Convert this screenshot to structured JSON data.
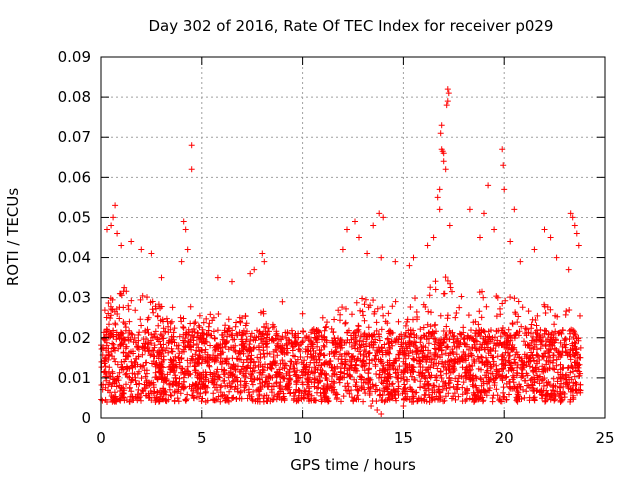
{
  "chart_data": {
    "type": "scatter",
    "title": "Day 302 of 2016, Rate Of TEC Index for receiver p029",
    "xlabel": "GPS time / hours",
    "ylabel": "ROTI / TECUs",
    "xlim": [
      0,
      25
    ],
    "ylim": [
      0,
      0.09
    ],
    "x_ticks": [
      0,
      5,
      10,
      15,
      20,
      25
    ],
    "y_ticks": [
      0,
      0.01,
      0.02,
      0.03,
      0.04,
      0.05,
      0.06,
      0.07,
      0.08,
      0.09
    ],
    "x_tick_labels": [
      "0",
      "5",
      "10",
      "15",
      "20",
      "25"
    ],
    "y_tick_labels": [
      "0",
      "0.01",
      "0.02",
      "0.03",
      "0.04",
      "0.05",
      "0.06",
      "0.07",
      "0.08",
      "0.09"
    ],
    "grid": true,
    "marker": "+",
    "marker_color": "#ff0000",
    "series": [
      {
        "name": "ROTI",
        "points": [
          [
            0.7,
            0.053
          ],
          [
            0.6,
            0.05
          ],
          [
            0.3,
            0.047
          ],
          [
            0.5,
            0.048
          ],
          [
            0.8,
            0.046
          ],
          [
            1.0,
            0.043
          ],
          [
            1.5,
            0.044
          ],
          [
            2.0,
            0.042
          ],
          [
            2.5,
            0.041
          ],
          [
            3.0,
            0.035
          ],
          [
            4.1,
            0.049
          ],
          [
            4.2,
            0.047
          ],
          [
            4.5,
            0.068
          ],
          [
            4.5,
            0.062
          ],
          [
            4.0,
            0.039
          ],
          [
            4.3,
            0.042
          ],
          [
            5.8,
            0.035
          ],
          [
            6.5,
            0.034
          ],
          [
            7.4,
            0.036
          ],
          [
            7.6,
            0.037
          ],
          [
            8.0,
            0.041
          ],
          [
            8.1,
            0.039
          ],
          [
            9.0,
            0.029
          ],
          [
            10.0,
            0.026
          ],
          [
            11.0,
            0.025
          ],
          [
            12.0,
            0.042
          ],
          [
            12.2,
            0.047
          ],
          [
            12.6,
            0.049
          ],
          [
            12.8,
            0.045
          ],
          [
            13.2,
            0.041
          ],
          [
            13.5,
            0.048
          ],
          [
            13.8,
            0.051
          ],
          [
            14.0,
            0.05
          ],
          [
            13.9,
            0.04
          ],
          [
            14.6,
            0.039
          ],
          [
            15.3,
            0.038
          ],
          [
            15.5,
            0.04
          ],
          [
            16.2,
            0.043
          ],
          [
            16.5,
            0.045
          ],
          [
            16.8,
            0.052
          ],
          [
            16.9,
            0.073
          ],
          [
            16.85,
            0.071
          ],
          [
            16.9,
            0.067
          ],
          [
            17.0,
            0.066
          ],
          [
            16.95,
            0.0665
          ],
          [
            17.2,
            0.082
          ],
          [
            17.25,
            0.081
          ],
          [
            17.2,
            0.079
          ],
          [
            17.15,
            0.078
          ],
          [
            17.0,
            0.064
          ],
          [
            16.8,
            0.057
          ],
          [
            17.1,
            0.062
          ],
          [
            16.7,
            0.055
          ],
          [
            17.3,
            0.048
          ],
          [
            18.3,
            0.052
          ],
          [
            18.8,
            0.045
          ],
          [
            19.0,
            0.051
          ],
          [
            19.2,
            0.058
          ],
          [
            19.5,
            0.047
          ],
          [
            19.9,
            0.067
          ],
          [
            19.95,
            0.063
          ],
          [
            20.0,
            0.057
          ],
          [
            20.5,
            0.052
          ],
          [
            20.3,
            0.044
          ],
          [
            20.8,
            0.039
          ],
          [
            21.5,
            0.042
          ],
          [
            22.0,
            0.047
          ],
          [
            22.3,
            0.045
          ],
          [
            22.6,
            0.04
          ],
          [
            23.2,
            0.037
          ],
          [
            23.3,
            0.051
          ],
          [
            23.4,
            0.05
          ],
          [
            23.5,
            0.048
          ],
          [
            23.6,
            0.046
          ],
          [
            23.7,
            0.043
          ],
          [
            13.9,
            0.001
          ],
          [
            13.7,
            0.002
          ],
          [
            13.4,
            0.003
          ],
          [
            0.3,
            0.004
          ],
          [
            15.0,
            0.003
          ],
          [
            1.1,
            0.005
          ],
          [
            2.7,
            0.004
          ],
          [
            6.3,
            0.005
          ],
          [
            9.8,
            0.005
          ],
          [
            18.5,
            0.004
          ],
          [
            22.8,
            0.004
          ],
          [
            21.0,
            0.005
          ],
          [
            5.2,
            0.004
          ],
          [
            11.7,
            0.005
          ],
          [
            16.3,
            0.004
          ]
        ]
      }
    ],
    "dense_band": {
      "note": "dense cloud of points across the day",
      "base_min": 0.004,
      "base_max": 0.022,
      "x_start": 0.0,
      "x_end": 23.8,
      "envelope": [
        [
          0,
          0.028
        ],
        [
          1,
          0.033
        ],
        [
          2,
          0.031
        ],
        [
          3,
          0.028
        ],
        [
          4,
          0.03
        ],
        [
          5,
          0.027
        ],
        [
          6,
          0.026
        ],
        [
          7,
          0.028
        ],
        [
          8,
          0.027
        ],
        [
          9,
          0.022
        ],
        [
          10,
          0.02
        ],
        [
          11,
          0.024
        ],
        [
          12,
          0.03
        ],
        [
          13,
          0.032
        ],
        [
          14,
          0.031
        ],
        [
          15,
          0.029
        ],
        [
          16,
          0.032
        ],
        [
          17,
          0.036
        ],
        [
          18,
          0.03
        ],
        [
          19,
          0.032
        ],
        [
          20,
          0.031
        ],
        [
          21,
          0.03
        ],
        [
          22,
          0.029
        ],
        [
          23,
          0.027
        ],
        [
          23.8,
          0.027
        ]
      ]
    }
  }
}
